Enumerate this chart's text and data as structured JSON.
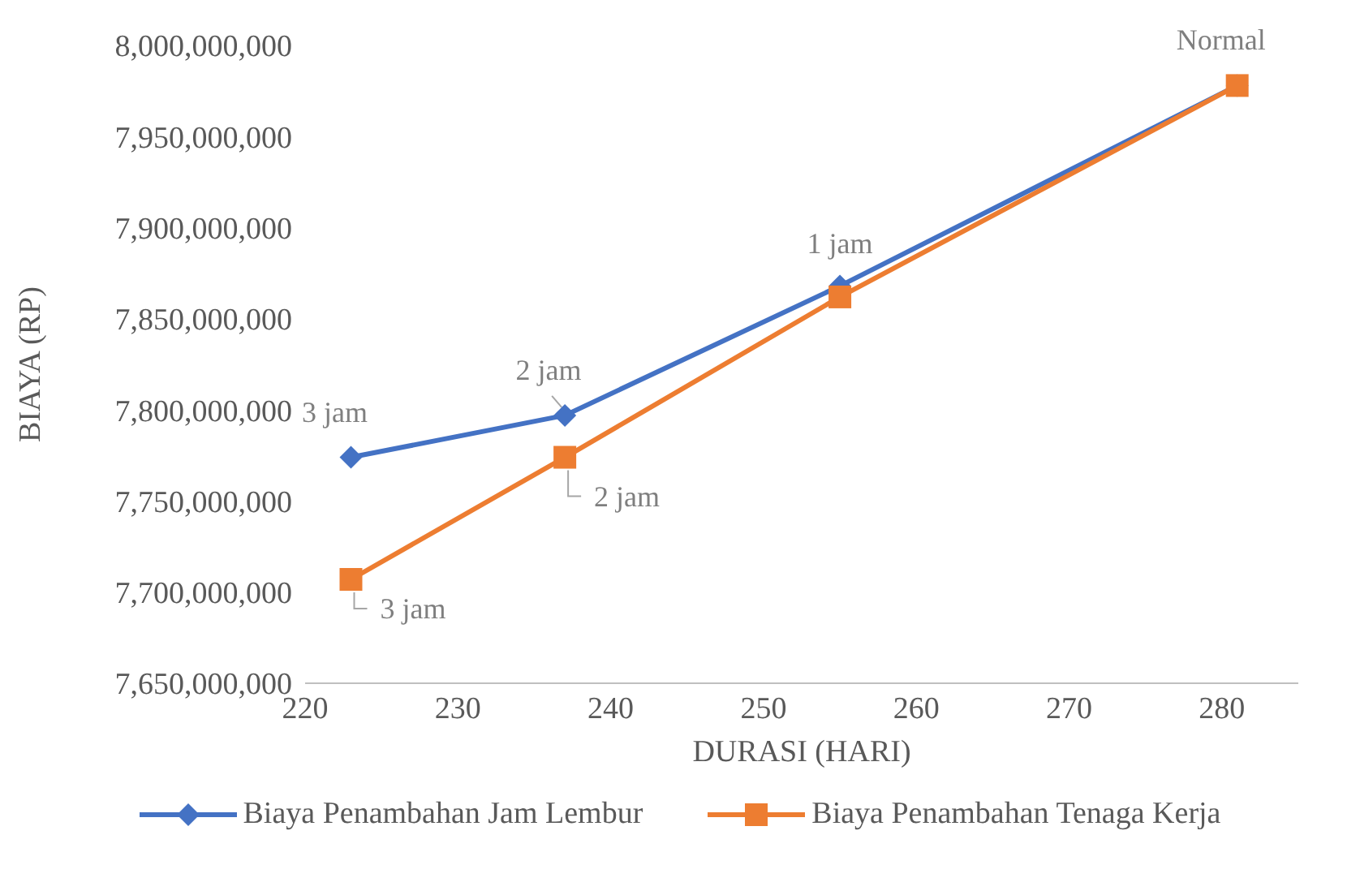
{
  "chart_data": {
    "type": "line",
    "xlabel": "DURASI (HARI)",
    "ylabel": "BIAYA (RP)",
    "xlim": [
      220,
      285
    ],
    "xticks": [
      220,
      230,
      240,
      250,
      260,
      270,
      280
    ],
    "ylim": [
      7650000000,
      8000000000
    ],
    "yticks": [
      {
        "value": 7650000000,
        "label": "7,650,000,000"
      },
      {
        "value": 7700000000,
        "label": "7,700,000,000"
      },
      {
        "value": 7750000000,
        "label": "7,750,000,000"
      },
      {
        "value": 7800000000,
        "label": "7,800,000,000"
      },
      {
        "value": 7850000000,
        "label": "7,850,000,000"
      },
      {
        "value": 7900000000,
        "label": "7,900,000,000"
      },
      {
        "value": 7950000000,
        "label": "7,950,000,000"
      },
      {
        "value": 8000000000,
        "label": "8,000,000,000"
      }
    ],
    "grid": false,
    "legend": "bottom",
    "series": [
      {
        "name": "Biaya Penambahan Jam Lembur",
        "color": "#4472c4",
        "marker": "diamond",
        "x": [
          223,
          237,
          255,
          281
        ],
        "values": [
          7774000000,
          7797000000,
          7868000000,
          7978000000
        ]
      },
      {
        "name": "Biaya Penambahan Tenaga Kerja",
        "color": "#ed7d31",
        "marker": "square",
        "x": [
          223,
          237,
          255,
          281
        ],
        "values": [
          7707000000,
          7774000000,
          7862000000,
          7978000000
        ]
      }
    ],
    "annotations": [
      {
        "text": "Normal",
        "x": 281,
        "y": 7978000000
      },
      {
        "text": "1 jam",
        "x": 255,
        "y": 7868000000
      },
      {
        "text": "2 jam",
        "x": 237,
        "y": 7797000000
      },
      {
        "text": "3 jam",
        "x": 223,
        "y": 7774000000
      },
      {
        "text": "2 jam",
        "x": 237,
        "y": 7774000000
      },
      {
        "text": "3 jam",
        "x": 223,
        "y": 7707000000
      }
    ]
  }
}
